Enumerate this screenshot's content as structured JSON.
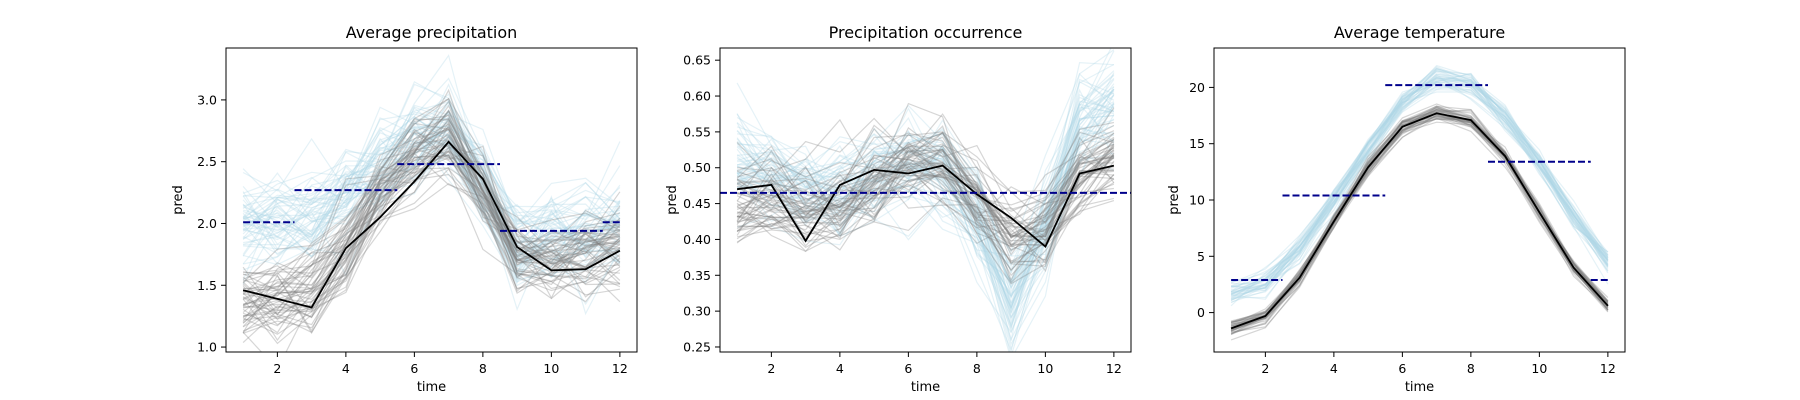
{
  "chart_data": [
    {
      "type": "line",
      "title": "Average precipitation",
      "xlabel": "time",
      "ylabel": "pred",
      "xlim": [
        0.5,
        12.5
      ],
      "ylim": [
        0.96,
        3.42
      ],
      "xticks": [
        2,
        4,
        6,
        8,
        10,
        12
      ],
      "yticks": [
        1.0,
        1.5,
        2.0,
        2.5,
        3.0
      ],
      "ytick_labels": [
        "1.0",
        "1.5",
        "2.0",
        "2.5",
        "3.0"
      ],
      "x": [
        1,
        2,
        3,
        4,
        5,
        6,
        7,
        8,
        9,
        10,
        11,
        12
      ],
      "ensembles": [
        {
          "color": "#add8e6",
          "center": [
            1.98,
            1.99,
            2.05,
            2.22,
            2.45,
            2.68,
            2.78,
            2.3,
            1.82,
            1.86,
            1.9,
            2.0
          ],
          "spread": 0.2,
          "count": 55
        },
        {
          "color": "#808080",
          "center": [
            1.38,
            1.38,
            1.45,
            1.82,
            2.25,
            2.55,
            2.7,
            2.25,
            1.75,
            1.72,
            1.76,
            1.82
          ],
          "spread": 0.16,
          "count": 55
        }
      ],
      "series": [
        {
          "color": "#000000",
          "values": [
            1.46,
            1.39,
            1.32,
            1.8,
            2.05,
            2.34,
            2.66,
            2.36,
            1.81,
            1.62,
            1.63,
            1.78
          ]
        }
      ],
      "hlines": [
        {
          "color": "#00008b",
          "x": [
            1,
            2.5
          ],
          "y": 2.01
        },
        {
          "color": "#00008b",
          "x": [
            2.5,
            5.5
          ],
          "y": 2.27
        },
        {
          "color": "#00008b",
          "x": [
            5.5,
            8.5
          ],
          "y": 2.48
        },
        {
          "color": "#00008b",
          "x": [
            8.5,
            11.5
          ],
          "y": 1.94
        },
        {
          "color": "#00008b",
          "x": [
            11.5,
            12
          ],
          "y": 2.01
        }
      ]
    },
    {
      "type": "line",
      "title": "Precipitation occurrence",
      "xlabel": "time",
      "ylabel": "pred",
      "xlim": [
        0.5,
        12.5
      ],
      "ylim": [
        0.243,
        0.667
      ],
      "xticks": [
        2,
        4,
        6,
        8,
        10,
        12
      ],
      "yticks": [
        0.25,
        0.3,
        0.35,
        0.4,
        0.45,
        0.5,
        0.55,
        0.6,
        0.65
      ],
      "ytick_labels": [
        "0.25",
        "0.30",
        "0.35",
        "0.40",
        "0.45",
        "0.50",
        "0.55",
        "0.60",
        "0.65"
      ],
      "x": [
        1,
        2,
        3,
        4,
        5,
        6,
        7,
        8,
        9,
        10,
        11,
        12
      ],
      "ensembles": [
        {
          "color": "#add8e6",
          "center": [
            0.5,
            0.48,
            0.46,
            0.46,
            0.48,
            0.5,
            0.49,
            0.42,
            0.31,
            0.41,
            0.55,
            0.59
          ],
          "spread": 0.035,
          "count": 55
        },
        {
          "color": "#808080",
          "center": [
            0.45,
            0.455,
            0.45,
            0.45,
            0.48,
            0.51,
            0.51,
            0.46,
            0.41,
            0.42,
            0.49,
            0.52
          ],
          "spread": 0.03,
          "count": 55
        }
      ],
      "series": [
        {
          "color": "#000000",
          "values": [
            0.47,
            0.476,
            0.398,
            0.476,
            0.497,
            0.492,
            0.503,
            0.463,
            0.43,
            0.39,
            0.492,
            0.503
          ]
        }
      ],
      "hlines": [
        {
          "color": "#00008b",
          "x": [
            0.5,
            12.5
          ],
          "y": 0.465
        }
      ]
    },
    {
      "type": "line",
      "title": "Average temperature",
      "xlabel": "time",
      "ylabel": "pred",
      "xlim": [
        0.5,
        12.5
      ],
      "ylim": [
        -3.5,
        23.5
      ],
      "xticks": [
        2,
        4,
        6,
        8,
        10,
        12
      ],
      "yticks": [
        0,
        5,
        10,
        15,
        20
      ],
      "ytick_labels": [
        "0",
        "5",
        "10",
        "15",
        "20"
      ],
      "x": [
        1,
        2,
        3,
        4,
        5,
        6,
        7,
        8,
        9,
        10,
        11,
        12
      ],
      "ensembles": [
        {
          "color": "#add8e6",
          "center": [
            1.7,
            2.7,
            5.6,
            9.9,
            14.5,
            18.6,
            20.8,
            20.3,
            17.3,
            13.3,
            8.6,
            4.4
          ],
          "spread": 0.55,
          "count": 40
        },
        {
          "color": "#808080",
          "center": [
            -1.4,
            -0.3,
            3.1,
            8.1,
            12.9,
            16.5,
            17.7,
            17.1,
            13.9,
            8.9,
            4.0,
            0.6
          ],
          "spread": 0.35,
          "count": 40
        }
      ],
      "series": [
        {
          "color": "#000000",
          "values": [
            -1.4,
            -0.3,
            3.1,
            8.1,
            12.9,
            16.5,
            17.7,
            17.1,
            13.9,
            8.9,
            4.0,
            0.6
          ]
        }
      ],
      "hlines": [
        {
          "color": "#00008b",
          "x": [
            1,
            2.5
          ],
          "y": 2.9
        },
        {
          "color": "#00008b",
          "x": [
            2.5,
            5.5
          ],
          "y": 10.4
        },
        {
          "color": "#00008b",
          "x": [
            5.5,
            8.5
          ],
          "y": 20.2
        },
        {
          "color": "#00008b",
          "x": [
            8.5,
            11.5
          ],
          "y": 13.4
        },
        {
          "color": "#00008b",
          "x": [
            11.5,
            12
          ],
          "y": 2.9
        }
      ]
    }
  ]
}
